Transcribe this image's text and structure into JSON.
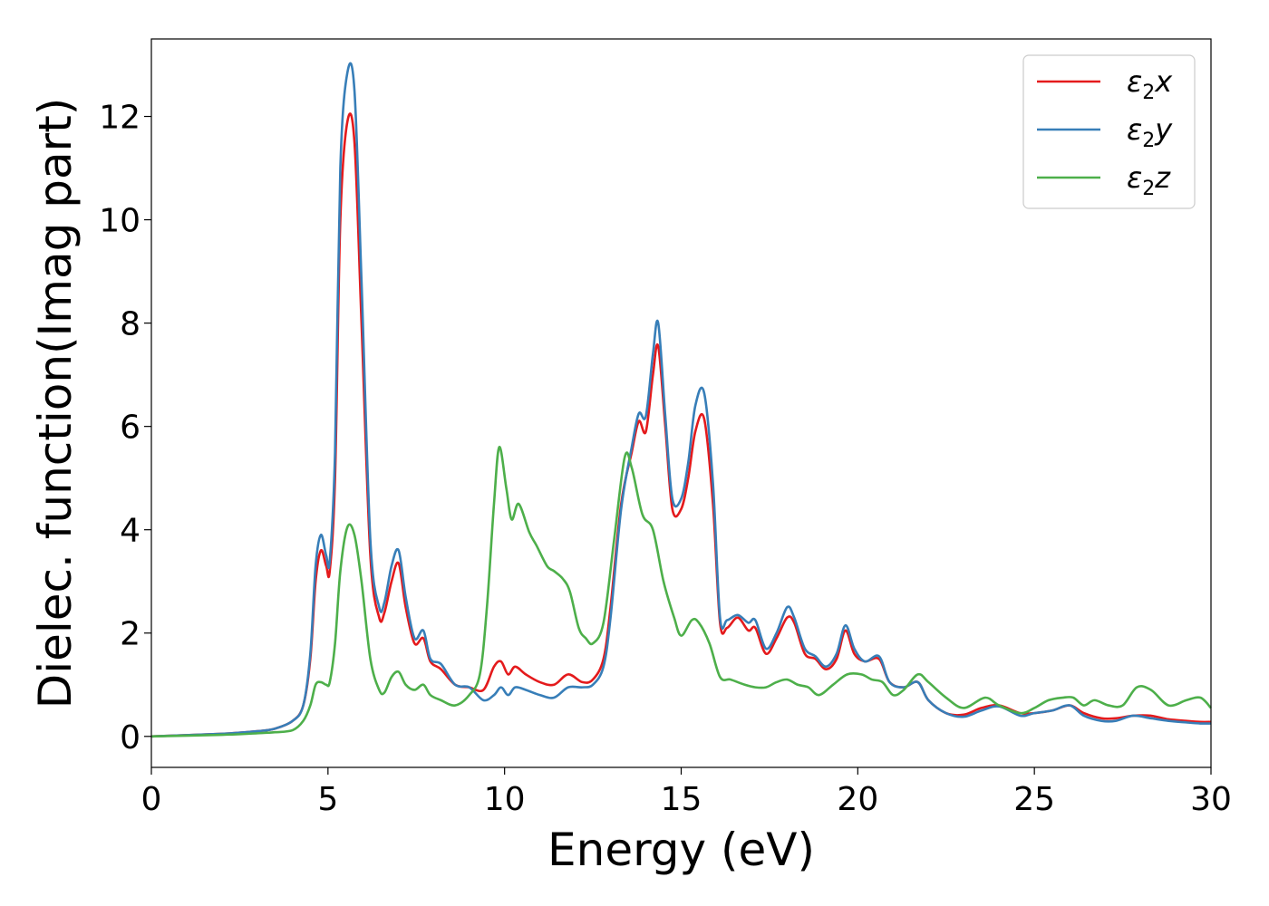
{
  "chart_data": {
    "type": "line",
    "xlabel": "Energy (eV)",
    "ylabel": "Dielec. function(Imag part)",
    "xlim": [
      0,
      30
    ],
    "ylim": [
      -0.6,
      13.5
    ],
    "xticks": [
      0,
      5,
      10,
      15,
      20,
      25,
      30
    ],
    "yticks": [
      0,
      2,
      4,
      6,
      8,
      10,
      12
    ],
    "grid": false,
    "legend_position": "top-right",
    "series": [
      {
        "name": "ε₂x",
        "legend_base": "ε",
        "legend_sub": "2",
        "legend_var": "x",
        "color": "#e41a1c",
        "x": [
          0,
          2,
          3,
          3.5,
          4,
          4.3,
          4.5,
          4.65,
          4.8,
          4.95,
          5.05,
          5.2,
          5.35,
          5.55,
          5.75,
          5.95,
          6.2,
          6.45,
          6.6,
          6.8,
          7.0,
          7.2,
          7.45,
          7.7,
          7.9,
          8.2,
          8.6,
          9.0,
          9.4,
          9.7,
          9.9,
          10.1,
          10.3,
          10.6,
          11.0,
          11.4,
          11.8,
          12.2,
          12.5,
          12.8,
          13.0,
          13.3,
          13.6,
          13.8,
          14.0,
          14.2,
          14.35,
          14.55,
          14.75,
          15.0,
          15.2,
          15.4,
          15.65,
          15.9,
          16.1,
          16.3,
          16.6,
          16.9,
          17.1,
          17.4,
          17.7,
          18.0,
          18.2,
          18.5,
          18.8,
          19.1,
          19.4,
          19.65,
          19.9,
          20.2,
          20.6,
          20.9,
          21.3,
          21.7,
          22.0,
          22.5,
          23.0,
          23.5,
          24.0,
          24.6,
          25.0,
          25.5,
          26.0,
          26.4,
          26.9,
          27.3,
          27.8,
          28.3,
          28.8,
          29.3,
          29.7,
          30
        ],
        "values": [
          0,
          0.05,
          0.1,
          0.15,
          0.3,
          0.6,
          1.5,
          3.0,
          3.6,
          3.3,
          3.2,
          5.0,
          10.0,
          11.9,
          11.5,
          8.0,
          3.5,
          2.3,
          2.4,
          3.0,
          3.35,
          2.5,
          1.8,
          1.9,
          1.45,
          1.3,
          1.0,
          0.95,
          0.9,
          1.35,
          1.45,
          1.2,
          1.35,
          1.2,
          1.05,
          1.0,
          1.2,
          1.05,
          1.1,
          1.5,
          2.5,
          4.5,
          5.5,
          6.1,
          5.9,
          7.0,
          7.55,
          6.0,
          4.4,
          4.4,
          5.0,
          5.9,
          6.15,
          4.5,
          2.2,
          2.1,
          2.3,
          2.05,
          2.1,
          1.6,
          1.9,
          2.3,
          2.2,
          1.6,
          1.5,
          1.3,
          1.5,
          2.05,
          1.6,
          1.45,
          1.5,
          1.05,
          0.95,
          1.05,
          0.7,
          0.45,
          0.42,
          0.55,
          0.6,
          0.45,
          0.45,
          0.5,
          0.6,
          0.45,
          0.35,
          0.35,
          0.4,
          0.4,
          0.33,
          0.3,
          0.28,
          0.28
        ]
      },
      {
        "name": "ε₂y",
        "legend_base": "ε",
        "legend_sub": "2",
        "legend_var": "y",
        "color": "#377eb8",
        "x": [
          0,
          2,
          3,
          3.5,
          4,
          4.3,
          4.5,
          4.65,
          4.8,
          4.95,
          5.05,
          5.2,
          5.35,
          5.55,
          5.75,
          5.95,
          6.2,
          6.45,
          6.6,
          6.8,
          7.0,
          7.2,
          7.45,
          7.7,
          7.9,
          8.2,
          8.6,
          9.0,
          9.4,
          9.7,
          9.9,
          10.1,
          10.3,
          10.6,
          11.0,
          11.4,
          11.8,
          12.2,
          12.5,
          12.8,
          13.0,
          13.3,
          13.6,
          13.8,
          14.0,
          14.2,
          14.35,
          14.55,
          14.75,
          15.0,
          15.2,
          15.4,
          15.65,
          15.9,
          16.1,
          16.3,
          16.6,
          16.9,
          17.1,
          17.4,
          17.7,
          18.0,
          18.2,
          18.5,
          18.8,
          19.1,
          19.4,
          19.65,
          19.9,
          20.2,
          20.6,
          20.9,
          21.3,
          21.7,
          22.0,
          22.5,
          23.0,
          23.5,
          24.0,
          24.6,
          25.0,
          25.5,
          26.0,
          26.4,
          26.9,
          27.3,
          27.8,
          28.3,
          28.8,
          29.3,
          29.7,
          30
        ],
        "values": [
          0,
          0.05,
          0.1,
          0.15,
          0.3,
          0.6,
          1.6,
          3.3,
          3.9,
          3.5,
          3.4,
          5.5,
          11.0,
          12.85,
          12.5,
          8.8,
          3.8,
          2.5,
          2.6,
          3.3,
          3.6,
          2.7,
          1.9,
          2.05,
          1.5,
          1.4,
          1.0,
          0.95,
          0.7,
          0.8,
          0.95,
          0.8,
          0.95,
          0.9,
          0.8,
          0.75,
          0.95,
          0.95,
          1.0,
          1.35,
          2.3,
          4.4,
          5.6,
          6.25,
          6.2,
          7.4,
          8.0,
          6.2,
          4.6,
          4.6,
          5.3,
          6.4,
          6.65,
          4.9,
          2.3,
          2.25,
          2.35,
          2.2,
          2.25,
          1.7,
          2.0,
          2.5,
          2.3,
          1.7,
          1.55,
          1.35,
          1.6,
          2.15,
          1.7,
          1.45,
          1.55,
          1.05,
          0.95,
          1.05,
          0.7,
          0.45,
          0.38,
          0.5,
          0.58,
          0.4,
          0.45,
          0.5,
          0.6,
          0.4,
          0.3,
          0.3,
          0.4,
          0.35,
          0.3,
          0.27,
          0.25,
          0.25
        ]
      },
      {
        "name": "ε₂z",
        "legend_base": "ε",
        "legend_sub": "2",
        "legend_var": "z",
        "color": "#4daf4a",
        "x": [
          0,
          2,
          3,
          3.5,
          4,
          4.3,
          4.5,
          4.65,
          4.8,
          4.95,
          5.05,
          5.2,
          5.35,
          5.55,
          5.75,
          5.95,
          6.2,
          6.45,
          6.6,
          6.8,
          7.0,
          7.2,
          7.45,
          7.7,
          7.9,
          8.2,
          8.6,
          9.0,
          9.3,
          9.5,
          9.7,
          9.85,
          10.05,
          10.2,
          10.4,
          10.7,
          10.9,
          11.2,
          11.4,
          11.65,
          11.85,
          12.1,
          12.3,
          12.5,
          12.8,
          13.1,
          13.4,
          13.6,
          13.9,
          14.2,
          14.5,
          14.8,
          15.0,
          15.3,
          15.5,
          15.8,
          16.1,
          16.4,
          16.8,
          17.1,
          17.4,
          17.7,
          18.0,
          18.3,
          18.6,
          18.9,
          19.3,
          19.7,
          20.1,
          20.4,
          20.7,
          21.0,
          21.3,
          21.7,
          22.0,
          22.5,
          23.0,
          23.6,
          24.0,
          24.6,
          25.0,
          25.4,
          25.8,
          26.1,
          26.4,
          26.7,
          27.1,
          27.5,
          27.9,
          28.3,
          28.8,
          29.3,
          29.7,
          30
        ],
        "values": [
          0,
          0.03,
          0.06,
          0.08,
          0.12,
          0.3,
          0.6,
          1.0,
          1.05,
          1.0,
          1.05,
          1.8,
          3.2,
          4.05,
          3.9,
          3.0,
          1.5,
          0.9,
          0.85,
          1.15,
          1.25,
          1.0,
          0.9,
          1.0,
          0.8,
          0.7,
          0.6,
          0.8,
          1.2,
          2.5,
          4.5,
          5.6,
          4.8,
          4.2,
          4.5,
          3.95,
          3.7,
          3.3,
          3.2,
          3.05,
          2.8,
          2.1,
          1.9,
          1.8,
          2.2,
          3.8,
          5.4,
          5.2,
          4.3,
          4.0,
          3.0,
          2.3,
          1.95,
          2.25,
          2.2,
          1.8,
          1.15,
          1.1,
          1.0,
          0.95,
          0.95,
          1.05,
          1.1,
          1.0,
          0.95,
          0.8,
          1.0,
          1.2,
          1.2,
          1.1,
          1.05,
          0.8,
          0.9,
          1.2,
          1.05,
          0.75,
          0.55,
          0.75,
          0.6,
          0.45,
          0.55,
          0.7,
          0.75,
          0.75,
          0.6,
          0.7,
          0.6,
          0.6,
          0.95,
          0.9,
          0.6,
          0.7,
          0.75,
          0.55
        ]
      }
    ]
  }
}
